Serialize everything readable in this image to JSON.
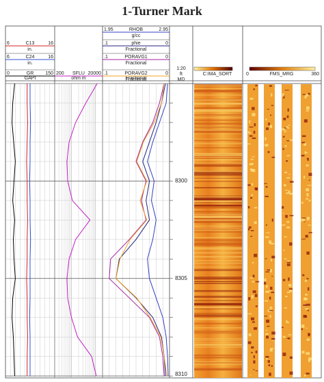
{
  "chart_data": {
    "type": "well-log",
    "title": "1-Turner Mark",
    "depth": {
      "header": [
        "1:20",
        "ft",
        "MD"
      ],
      "ylim": [
        8295,
        8310.1
      ],
      "yticks": [
        8300,
        8305,
        8310
      ],
      "minor_ticks": [
        8295,
        8296,
        8297,
        8298,
        8299,
        8300,
        8301,
        8302,
        8303,
        8304,
        8305,
        8306,
        8307,
        8308,
        8309,
        8310
      ],
      "samples": [
        8295,
        8296,
        8297,
        8298,
        8299,
        8300,
        8301,
        8302,
        8303,
        8304,
        8305,
        8306,
        8307,
        8308,
        8309,
        8310
      ]
    },
    "tracks": [
      {
        "footer": "GAPI",
        "curves": [
          {
            "name": "C13",
            "unit": "in.",
            "color": "#d02020",
            "xlim": [
              6,
              16
            ],
            "values": [
              10.4,
              10.4,
              10.5,
              10.4,
              10.3,
              10.4,
              10.4,
              10.5,
              10.4,
              10.4,
              10.3,
              10.4,
              10.4,
              10.5,
              10.4,
              10.4
            ]
          },
          {
            "name": "C24",
            "unit": "in.",
            "color": "#3050d0",
            "xlim": [
              6,
              16
            ],
            "values": [
              11.0,
              11.0,
              11.1,
              11.0,
              11.0,
              10.9,
              11.0,
              11.0,
              11.1,
              11.0,
              11.0,
              11.0,
              10.9,
              11.0,
              11.0,
              11.0
            ]
          },
          {
            "name": "GR",
            "color": "#000000",
            "xlim": [
              0,
              150
            ],
            "values": [
              28,
              22,
              20,
              25,
              30,
              26,
              22,
              28,
              24,
              26,
              30,
              22,
              20,
              24,
              26,
              28
            ]
          }
        ]
      },
      {
        "footer": "ohm m",
        "log": true,
        "curves": [
          {
            "name": "SFLU",
            "color": "#c020c0",
            "xlim": [
              200,
              20000
            ],
            "values": [
              12000,
              4000,
              1500,
              800,
              650,
              700,
              1100,
              6000,
              1500,
              800,
              650,
              700,
              1000,
              1800,
              7000,
              11000
            ]
          }
        ]
      },
      {
        "footer": "Fractional",
        "curves": [
          {
            "name": "RHOB",
            "unit": "g/cc",
            "color": "#3040c0",
            "xlim": [
              1.95,
              2.95
            ],
            "values": [
              2.92,
              2.9,
              2.8,
              2.7,
              2.62,
              2.72,
              2.68,
              2.75,
              2.7,
              2.62,
              2.65,
              2.75,
              2.85,
              2.9,
              2.92,
              2.93
            ]
          },
          {
            "name": "phie",
            "unit": "Fractional",
            "color": "#202080",
            "xlim": [
              {
                "value": 0.1,
                "label": ".1"
              },
              0
            ],
            "values": [
              0.006,
              0.012,
              0.02,
              0.03,
              0.04,
              0.03,
              0.035,
              0.03,
              0.05,
              0.075,
              0.08,
              0.05,
              0.025,
              0.012,
              0.008,
              0.006
            ]
          },
          {
            "name": "PORAVG1",
            "unit": "Fractional",
            "color": "#a020a0",
            "xlim": [
              {
                "value": 0.1,
                "label": ".1"
              },
              0
            ],
            "values": [
              0.008,
              0.015,
              0.025,
              0.04,
              0.05,
              0.035,
              0.042,
              0.035,
              0.06,
              0.088,
              0.09,
              0.06,
              0.03,
              0.015,
              0.01,
              0.008
            ]
          },
          {
            "name": "PORAVG2",
            "unit": "Fractional",
            "color": "#f0a020",
            "xlim": [
              {
                "value": 0.1,
                "label": ".1"
              },
              0
            ],
            "values": [
              0.008,
              0.012,
              0.023,
              0.039,
              0.049,
              0.034,
              0.044,
              0.034,
              0.059,
              0.074,
              0.08,
              0.049,
              0.029,
              0.013,
              0.008,
              0.004
            ]
          }
        ]
      }
    ],
    "images": [
      {
        "name": "C:IMA_SORT"
      },
      {
        "name": "FMS_MRG",
        "xlim": [
          0,
          360
        ]
      }
    ]
  }
}
